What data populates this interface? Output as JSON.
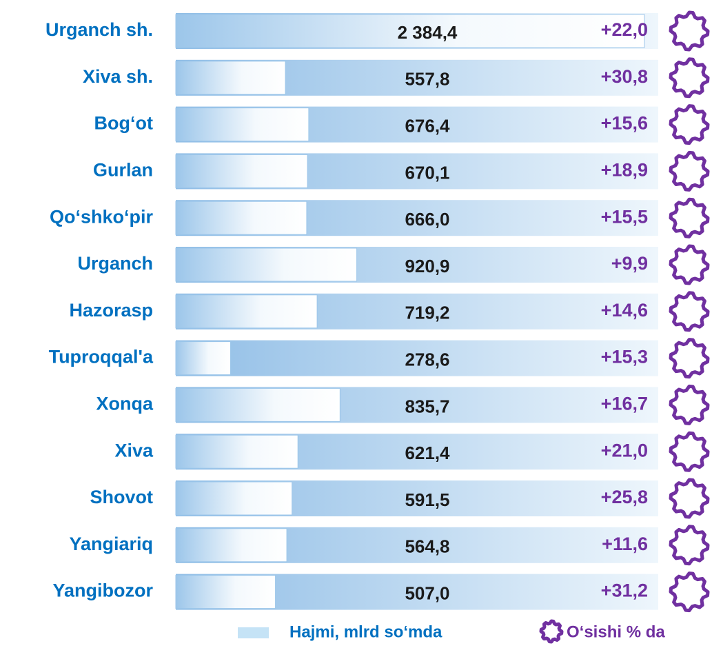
{
  "chart_data": {
    "type": "bar",
    "categories": [
      "Urganch sh.",
      "Xiva sh.",
      "Bog‘ot",
      "Gurlan",
      "Qo‘shko‘pir",
      "Urganch",
      "Hazorasp",
      "Tuproqqal'a",
      "Xonqa",
      "Xiva",
      "Shovot",
      "Yangiariq",
      "Yangibozor"
    ],
    "series": [
      {
        "name": "Hajmi, mlrd so‘mda",
        "color": "#c5e3f6",
        "values": [
          2384.4,
          557.8,
          676.4,
          670.1,
          666.0,
          920.9,
          719.2,
          278.6,
          835.7,
          621.4,
          591.5,
          564.8,
          507.0
        ],
        "value_labels": [
          "2 384,4",
          "557,8",
          "676,4",
          "670,1",
          "666,0",
          "920,9",
          "719,2",
          "278,6",
          "835,7",
          "621,4",
          "591,5",
          "564,8",
          "507,0"
        ]
      },
      {
        "name": "O‘sishi % da",
        "color": "#7030a0",
        "values": [
          22.0,
          30.8,
          15.6,
          18.9,
          15.5,
          9.9,
          14.6,
          15.3,
          16.7,
          21.0,
          25.8,
          11.6,
          31.2
        ],
        "value_labels": [
          "+22,0",
          "+30,8",
          "+15,6",
          "+18,9",
          "+15,5",
          "+9,9",
          "+14,6",
          "+15,3",
          "+16,7",
          "+21,0",
          "+25,8",
          "+11,6",
          "+31,2"
        ]
      }
    ]
  }
}
